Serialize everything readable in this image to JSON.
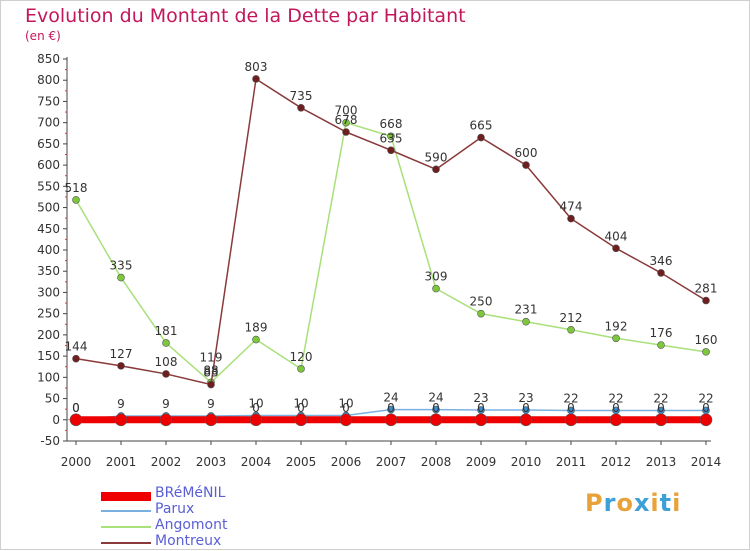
{
  "header": {
    "title": "Evolution du Montant de la Dette par Habitant",
    "subtitle": "(en €)"
  },
  "logo": {
    "text": "Proxiti",
    "colors": [
      "#e8a23a",
      "#3ea0d8",
      "#e8a23a",
      "#3ea0d8",
      "#e8a23a",
      "#3ea0d8",
      "#e8a23a"
    ]
  },
  "chart_data": {
    "type": "line",
    "title": "Evolution du Montant de la Dette par Habitant",
    "subtitle": "(en €)",
    "xlabel": "",
    "ylabel": "",
    "ylim": [
      -50,
      850
    ],
    "ytick_step": 50,
    "grid": false,
    "legend_position": "bottom-left",
    "x": [
      "2000",
      "2001",
      "2002",
      "2003",
      "2004",
      "2005",
      "2006",
      "2007",
      "2008",
      "2009",
      "2010",
      "2011",
      "2012",
      "2013",
      "2014"
    ],
    "series": [
      {
        "name": "BRéMéNIL",
        "color": "#ee0000",
        "line_width": 7,
        "marker": "#ee0000",
        "marker_size": 6,
        "values": [
          0,
          0,
          0,
          0,
          0,
          0,
          0,
          0,
          0,
          0,
          0,
          0,
          0,
          0,
          0
        ],
        "labels": []
      },
      {
        "name": "Parux",
        "color": "#7ab0e0",
        "line_width": 1.5,
        "marker": "#3a8fd0",
        "marker_size": 3.5,
        "values": [
          0,
          9,
          9,
          9,
          10,
          10,
          10,
          24,
          24,
          23,
          23,
          22,
          22,
          22,
          22
        ],
        "labels": [
          "0",
          "9",
          "9",
          "9",
          "10",
          "10",
          "10",
          "24",
          "24",
          "23",
          "23",
          "22",
          "22",
          "22",
          "22"
        ]
      },
      {
        "name": "Angomont",
        "color": "#a8e07a",
        "line_width": 1.5,
        "marker": "#7cc73c",
        "marker_size": 3.5,
        "values": [
          518,
          335,
          181,
          88,
          189,
          120,
          700,
          668,
          309,
          250,
          231,
          212,
          192,
          176,
          160
        ],
        "labels": [
          "518",
          "335",
          "181",
          "88",
          "189",
          "120",
          "700",
          "668",
          "309",
          "250",
          "231",
          "212",
          "192",
          "176",
          "160"
        ]
      },
      {
        "name": "Montreux",
        "color": "#8a3a3a",
        "line_width": 1.5,
        "marker": "#6e1e1e",
        "marker_size": 3.5,
        "values": [
          144,
          127,
          108,
          83,
          803,
          735,
          678,
          635,
          590,
          665,
          600,
          474,
          404,
          346,
          281
        ],
        "labels": [
          "144",
          "127",
          "108",
          "83",
          "803",
          "735",
          "678",
          "635",
          "590",
          "665",
          "600",
          "474",
          "404",
          "346",
          "281"
        ]
      }
    ],
    "extra_labels": [
      {
        "x_index": 3,
        "text": "119"
      },
      {
        "x_index": 0,
        "text": "0"
      },
      {
        "x_index": 4,
        "text": "0"
      },
      {
        "x_index": 5,
        "text": "0"
      },
      {
        "x_index": 6,
        "text": "0"
      },
      {
        "x_index": 7,
        "text": "0"
      },
      {
        "x_index": 8,
        "text": "0"
      },
      {
        "x_index": 9,
        "text": "0"
      },
      {
        "x_index": 10,
        "text": "0"
      },
      {
        "x_index": 11,
        "text": "0"
      },
      {
        "x_index": 12,
        "text": "0"
      },
      {
        "x_index": 13,
        "text": "0"
      },
      {
        "x_index": 14,
        "text": "0"
      }
    ]
  }
}
